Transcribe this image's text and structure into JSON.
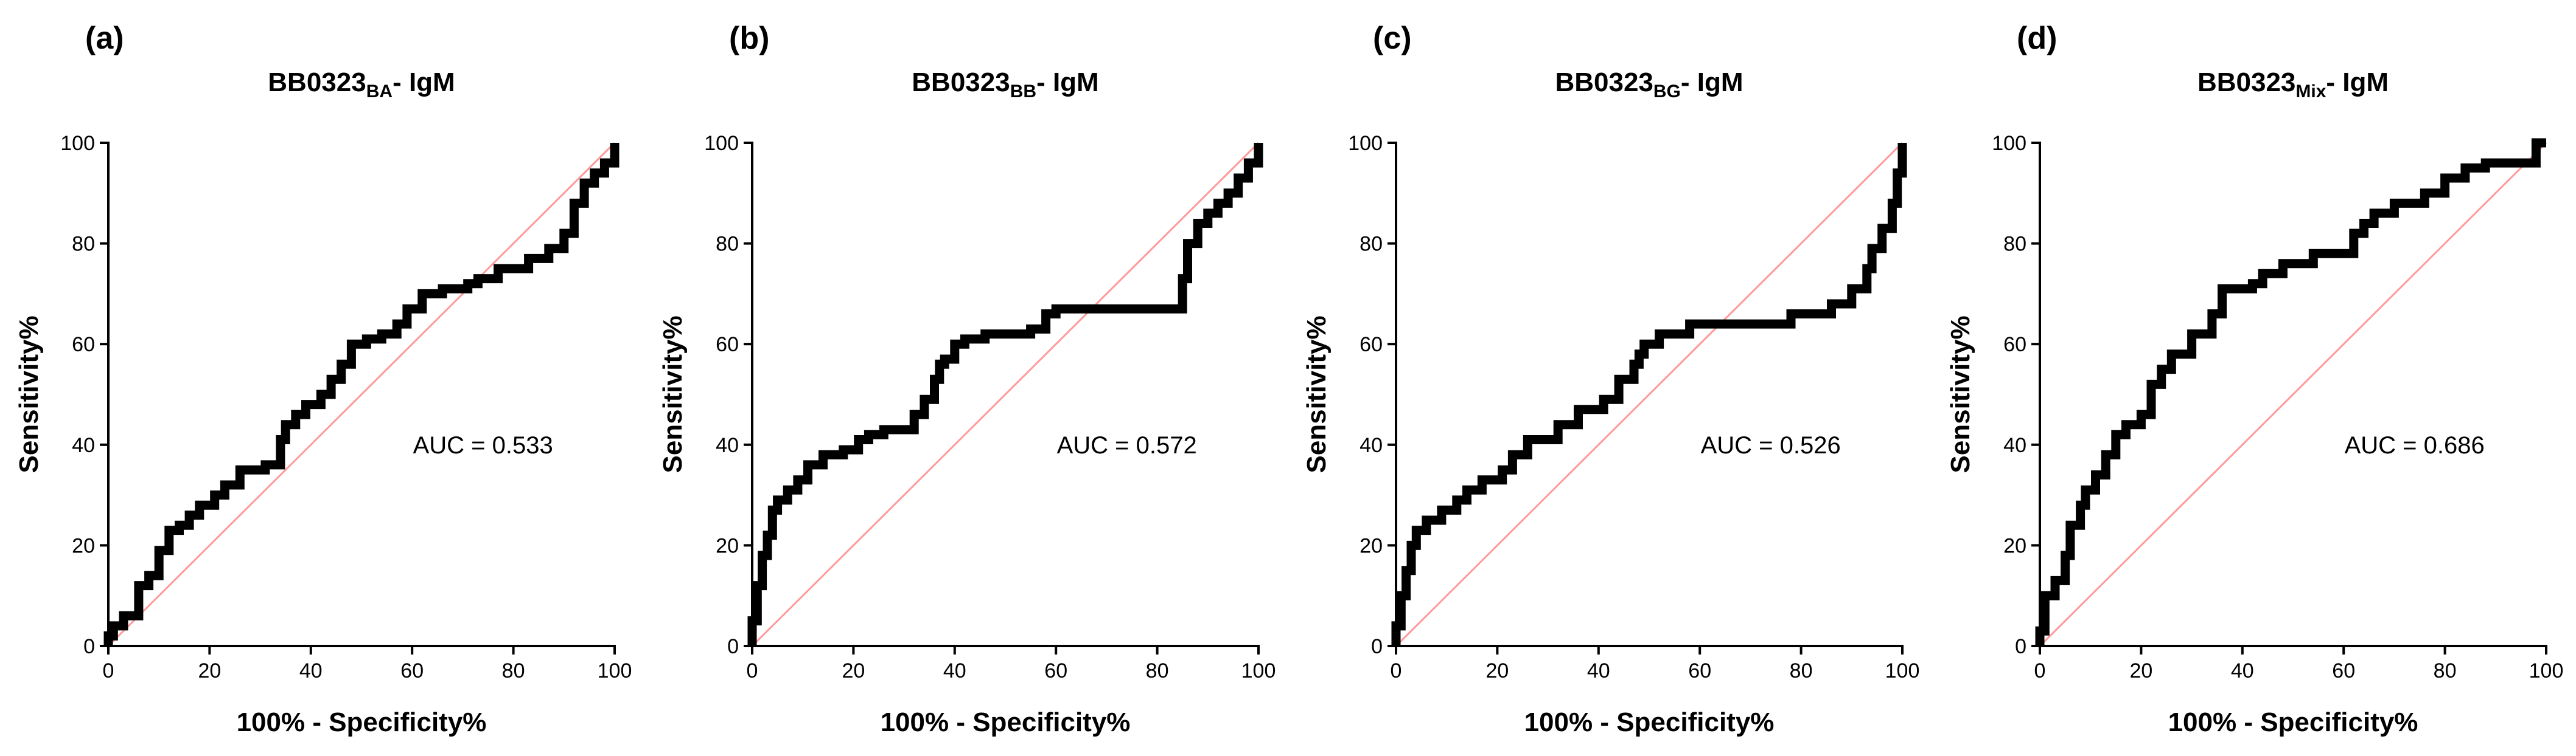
{
  "figure": {
    "name": "ROC curves for BB0323 IgM"
  },
  "chart_data": [
    {
      "type": "line",
      "panel_label": "(a)",
      "title": {
        "prefix": "BB0323",
        "subscript": "BA",
        "suffix": "- IgM"
      },
      "xlabel": "100% - Specificity%",
      "ylabel": "Sensitivity%",
      "xlim": [
        0,
        100
      ],
      "ylim": [
        0,
        100
      ],
      "xticks": [
        0,
        20,
        40,
        60,
        80,
        100
      ],
      "yticks": [
        0,
        20,
        40,
        60,
        80,
        100
      ],
      "annotation": "AUC = 0.533",
      "reference": {
        "name": "chance line",
        "color": "#ff9a9a",
        "x": [
          0,
          100
        ],
        "y": [
          0,
          100
        ]
      },
      "series": [
        {
          "name": "ROC",
          "color": "#000000",
          "x": [
            0,
            0,
            1,
            1,
            3,
            3,
            6,
            6,
            8,
            8,
            10,
            10,
            12,
            12,
            14,
            14,
            16,
            16,
            18,
            18,
            21,
            21,
            23,
            23,
            26,
            26,
            31,
            31,
            34,
            34,
            35,
            35,
            37,
            37,
            39,
            39,
            42,
            42,
            44,
            44,
            46,
            46,
            48,
            48,
            51,
            51,
            54,
            54,
            57,
            57,
            59,
            59,
            62,
            62,
            66,
            66,
            71,
            71,
            73,
            73,
            77,
            77,
            83,
            83,
            87,
            87,
            90,
            90,
            92,
            92,
            94,
            94,
            96,
            96,
            98,
            98,
            100,
            100
          ],
          "y": [
            0,
            2,
            2,
            4,
            4,
            6,
            6,
            12,
            12,
            14,
            14,
            19,
            19,
            23,
            23,
            24,
            24,
            26,
            26,
            28,
            28,
            30,
            30,
            32,
            32,
            35,
            35,
            36,
            36,
            41,
            41,
            44,
            44,
            46,
            46,
            48,
            48,
            50,
            50,
            53,
            53,
            56,
            56,
            60,
            60,
            61,
            61,
            62,
            62,
            64,
            64,
            67,
            67,
            70,
            70,
            71,
            71,
            72,
            72,
            73,
            73,
            75,
            75,
            77,
            77,
            79,
            79,
            82,
            82,
            88,
            88,
            92,
            92,
            94,
            94,
            96,
            96,
            100
          ]
        }
      ]
    },
    {
      "type": "line",
      "panel_label": "(b)",
      "title": {
        "prefix": "BB0323",
        "subscript": "BB",
        "suffix": "- IgM"
      },
      "xlabel": "100% - Specificity%",
      "ylabel": "Sensitivity%",
      "xlim": [
        0,
        100
      ],
      "ylim": [
        0,
        100
      ],
      "xticks": [
        0,
        20,
        40,
        60,
        80,
        100
      ],
      "yticks": [
        0,
        20,
        40,
        60,
        80,
        100
      ],
      "annotation": "AUC = 0.572",
      "reference": {
        "name": "chance line",
        "color": "#ff9a9a",
        "x": [
          0,
          100
        ],
        "y": [
          0,
          100
        ]
      },
      "series": [
        {
          "name": "ROC",
          "color": "#000000",
          "x": [
            0,
            0,
            1,
            1,
            2,
            2,
            3,
            3,
            4,
            4,
            5,
            5,
            7,
            7,
            9,
            9,
            11,
            11,
            14,
            14,
            18,
            18,
            21,
            21,
            23,
            23,
            26,
            26,
            32,
            32,
            34,
            34,
            36,
            36,
            37,
            37,
            38,
            38,
            40,
            40,
            42,
            42,
            46,
            46,
            55,
            55,
            58,
            58,
            60,
            60,
            85,
            85,
            86,
            86,
            88,
            88,
            90,
            90,
            92,
            92,
            94,
            94,
            96,
            96,
            98,
            98,
            100,
            100
          ],
          "y": [
            0,
            5,
            5,
            12,
            12,
            18,
            18,
            22,
            22,
            27,
            27,
            29,
            29,
            31,
            31,
            33,
            33,
            36,
            36,
            38,
            38,
            39,
            39,
            41,
            41,
            42,
            42,
            43,
            43,
            46,
            46,
            49,
            49,
            53,
            53,
            56,
            56,
            57,
            57,
            60,
            60,
            61,
            61,
            62,
            62,
            63,
            63,
            66,
            66,
            67,
            67,
            73,
            73,
            80,
            80,
            84,
            84,
            86,
            86,
            88,
            88,
            90,
            90,
            93,
            93,
            96,
            96,
            100
          ]
        }
      ]
    },
    {
      "type": "line",
      "panel_label": "(c)",
      "title": {
        "prefix": "BB0323",
        "subscript": "BG",
        "suffix": "- IgM"
      },
      "xlabel": "100% - Specificity%",
      "ylabel": "Sensitivity%",
      "xlim": [
        0,
        100
      ],
      "ylim": [
        0,
        100
      ],
      "xticks": [
        0,
        20,
        40,
        60,
        80,
        100
      ],
      "yticks": [
        0,
        20,
        40,
        60,
        80,
        100
      ],
      "annotation": "AUC = 0.526",
      "reference": {
        "name": "chance line",
        "color": "#ff9a9a",
        "x": [
          0,
          100
        ],
        "y": [
          0,
          100
        ]
      },
      "series": [
        {
          "name": "ROC",
          "color": "#000000",
          "x": [
            0,
            0,
            1,
            1,
            2,
            2,
            3,
            3,
            4,
            4,
            6,
            6,
            9,
            9,
            12,
            12,
            14,
            14,
            17,
            17,
            21,
            21,
            23,
            23,
            26,
            26,
            32,
            32,
            36,
            36,
            41,
            41,
            44,
            44,
            47,
            47,
            48,
            48,
            49,
            49,
            52,
            52,
            58,
            58,
            78,
            78,
            86,
            86,
            90,
            90,
            93,
            93,
            94,
            94,
            96,
            96,
            98,
            98,
            99,
            99,
            100,
            100
          ],
          "y": [
            0,
            4,
            4,
            10,
            10,
            15,
            15,
            20,
            20,
            23,
            23,
            25,
            25,
            27,
            27,
            29,
            29,
            31,
            31,
            33,
            33,
            35,
            35,
            38,
            38,
            41,
            41,
            44,
            44,
            47,
            47,
            49,
            49,
            53,
            53,
            56,
            56,
            58,
            58,
            60,
            60,
            62,
            62,
            64,
            64,
            66,
            66,
            68,
            68,
            71,
            71,
            75,
            75,
            79,
            79,
            83,
            83,
            88,
            88,
            94,
            94,
            100
          ]
        }
      ]
    },
    {
      "type": "line",
      "panel_label": "(d)",
      "title": {
        "prefix": "BB0323",
        "subscript": "Mix",
        "suffix": "- IgM"
      },
      "xlabel": "100% - Specificity%",
      "ylabel": "Sensitivity%",
      "xlim": [
        0,
        100
      ],
      "ylim": [
        0,
        100
      ],
      "xticks": [
        0,
        20,
        40,
        60,
        80,
        100
      ],
      "yticks": [
        0,
        20,
        40,
        60,
        80,
        100
      ],
      "annotation": "AUC = 0.686",
      "reference": {
        "name": "chance line",
        "color": "#ff9a9a",
        "x": [
          0,
          100
        ],
        "y": [
          0,
          100
        ]
      },
      "series": [
        {
          "name": "ROC",
          "color": "#000000",
          "x": [
            0,
            0,
            1,
            1,
            3,
            3,
            5,
            5,
            6,
            6,
            8,
            8,
            9,
            9,
            11,
            11,
            13,
            13,
            15,
            15,
            17,
            17,
            20,
            20,
            22,
            22,
            24,
            24,
            26,
            26,
            30,
            30,
            34,
            34,
            36,
            36,
            42,
            42,
            44,
            44,
            48,
            48,
            54,
            54,
            62,
            62,
            64,
            64,
            66,
            66,
            70,
            70,
            76,
            76,
            80,
            80,
            84,
            84,
            88,
            88,
            98,
            98,
            100
          ],
          "y": [
            0,
            3,
            3,
            10,
            10,
            13,
            13,
            18,
            18,
            24,
            24,
            28,
            28,
            31,
            31,
            34,
            34,
            38,
            38,
            42,
            42,
            44,
            44,
            46,
            46,
            52,
            52,
            55,
            55,
            58,
            58,
            62,
            62,
            66,
            66,
            71,
            71,
            72,
            72,
            74,
            74,
            76,
            76,
            78,
            78,
            82,
            82,
            84,
            84,
            86,
            86,
            88,
            88,
            90,
            90,
            93,
            93,
            95,
            95,
            96,
            96,
            100,
            100
          ]
        }
      ]
    }
  ]
}
